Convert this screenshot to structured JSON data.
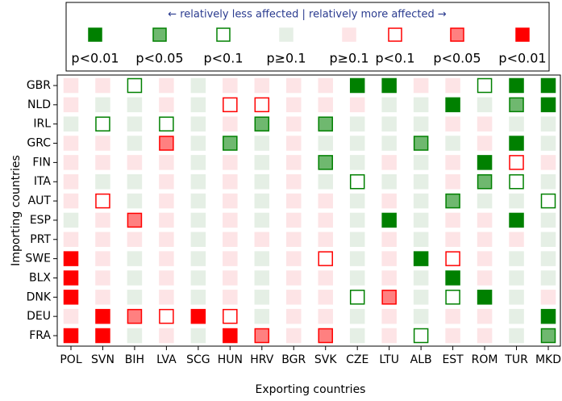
{
  "chart_data": {
    "type": "matrix",
    "legend_title": "← relatively less affected | relatively more affected →",
    "x_label": "Exporting countries",
    "y_label": "Importing countries",
    "legend": [
      {
        "name": "p<0.01",
        "fill": "#008000",
        "stroke": "#008000"
      },
      {
        "name": "p<0.05",
        "fill": "#6fb86f",
        "stroke": "#008000"
      },
      {
        "name": "p<0.1",
        "fill": "#ffffff",
        "stroke": "#008000"
      },
      {
        "name": "p≥0.1",
        "fill": "#e5efe5",
        "stroke": "#e5efe5"
      },
      {
        "name": "p≥0.1",
        "fill": "#fde4e6",
        "stroke": "#fde4e6"
      },
      {
        "name": "p<0.1",
        "fill": "#ffffff",
        "stroke": "#ff0000"
      },
      {
        "name": "p<0.05",
        "fill": "#ff8080",
        "stroke": "#ff0000"
      },
      {
        "name": "p<0.01",
        "fill": "#ff0000",
        "stroke": "#ff0000"
      }
    ],
    "columns": [
      "POL",
      "SVN",
      "BIH",
      "LVA",
      "SCG",
      "HUN",
      "HRV",
      "BGR",
      "SVK",
      "CZE",
      "LTU",
      "ALB",
      "EST",
      "ROM",
      "TUR",
      "MKD"
    ],
    "rows": [
      "GBR",
      "NLD",
      "IRL",
      "GRC",
      "FIN",
      "ITA",
      "AUT",
      "ESP",
      "PRT",
      "SWE",
      "BLX",
      "DNK",
      "DEU",
      "FRA"
    ],
    "cells": [
      [
        4,
        4,
        2,
        4,
        3,
        4,
        4,
        4,
        4,
        0,
        0,
        4,
        4,
        2,
        0,
        0
      ],
      [
        4,
        3,
        3,
        4,
        3,
        5,
        5,
        4,
        4,
        4,
        3,
        3,
        0,
        3,
        1,
        0
      ],
      [
        3,
        2,
        3,
        2,
        3,
        4,
        1,
        4,
        1,
        3,
        3,
        3,
        4,
        4,
        3,
        3
      ],
      [
        4,
        4,
        3,
        6,
        3,
        1,
        3,
        4,
        3,
        3,
        3,
        1,
        3,
        4,
        0,
        3
      ],
      [
        4,
        4,
        4,
        4,
        3,
        4,
        3,
        4,
        1,
        3,
        4,
        3,
        4,
        0,
        5,
        4
      ],
      [
        4,
        3,
        3,
        4,
        3,
        4,
        3,
        4,
        3,
        2,
        3,
        3,
        4,
        1,
        2,
        3
      ],
      [
        4,
        5,
        3,
        4,
        3,
        4,
        3,
        4,
        4,
        3,
        4,
        3,
        1,
        3,
        3,
        2
      ],
      [
        3,
        4,
        6,
        4,
        3,
        4,
        3,
        4,
        4,
        3,
        0,
        3,
        4,
        4,
        0,
        3
      ],
      [
        4,
        4,
        4,
        4,
        3,
        4,
        4,
        4,
        4,
        3,
        4,
        3,
        4,
        4,
        4,
        3
      ],
      [
        7,
        4,
        3,
        4,
        3,
        4,
        3,
        4,
        5,
        3,
        4,
        0,
        5,
        4,
        3,
        3
      ],
      [
        7,
        4,
        3,
        4,
        3,
        4,
        3,
        4,
        4,
        3,
        4,
        3,
        0,
        4,
        3,
        3
      ],
      [
        7,
        4,
        3,
        4,
        3,
        4,
        3,
        4,
        4,
        2,
        6,
        3,
        2,
        0,
        3,
        4
      ],
      [
        4,
        7,
        6,
        5,
        7,
        5,
        3,
        4,
        4,
        3,
        4,
        3,
        4,
        4,
        3,
        0
      ],
      [
        7,
        7,
        3,
        4,
        3,
        7,
        6,
        4,
        6,
        3,
        4,
        2,
        4,
        4,
        3,
        1
      ]
    ]
  }
}
